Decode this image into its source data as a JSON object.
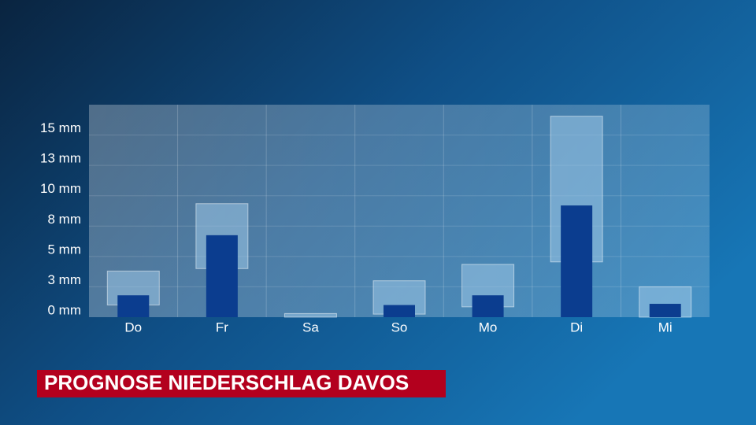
{
  "chart_data": {
    "type": "range-bar",
    "title": "PROGNOSE NIEDERSCHLAG DAVOS",
    "categories": [
      "Do",
      "Fr",
      "Sa",
      "So",
      "Mo",
      "Di",
      "Mi"
    ],
    "values": [
      1.8,
      6.75,
      0,
      1.0,
      1.8,
      9.2,
      1.1
    ],
    "min": [
      1.0,
      4.0,
      0,
      0.25,
      0.85,
      4.55,
      0
    ],
    "max": [
      3.8,
      9.35,
      0.3,
      3.0,
      4.35,
      16.55,
      2.5
    ],
    "color": "#0b3d8f",
    "range_color": "#9cc6e6",
    "ylim": [
      0,
      17.5
    ],
    "yticks": [
      {
        "value": 0,
        "label": "0 mm"
      },
      {
        "value": 2.5,
        "label": "3 mm"
      },
      {
        "value": 5,
        "label": "5 mm"
      },
      {
        "value": 7.5,
        "label": "8 mm"
      },
      {
        "value": 10,
        "label": "10 mm"
      },
      {
        "value": 12.5,
        "label": "13 mm"
      },
      {
        "value": 15,
        "label": "15 mm"
      }
    ],
    "grid": true
  }
}
